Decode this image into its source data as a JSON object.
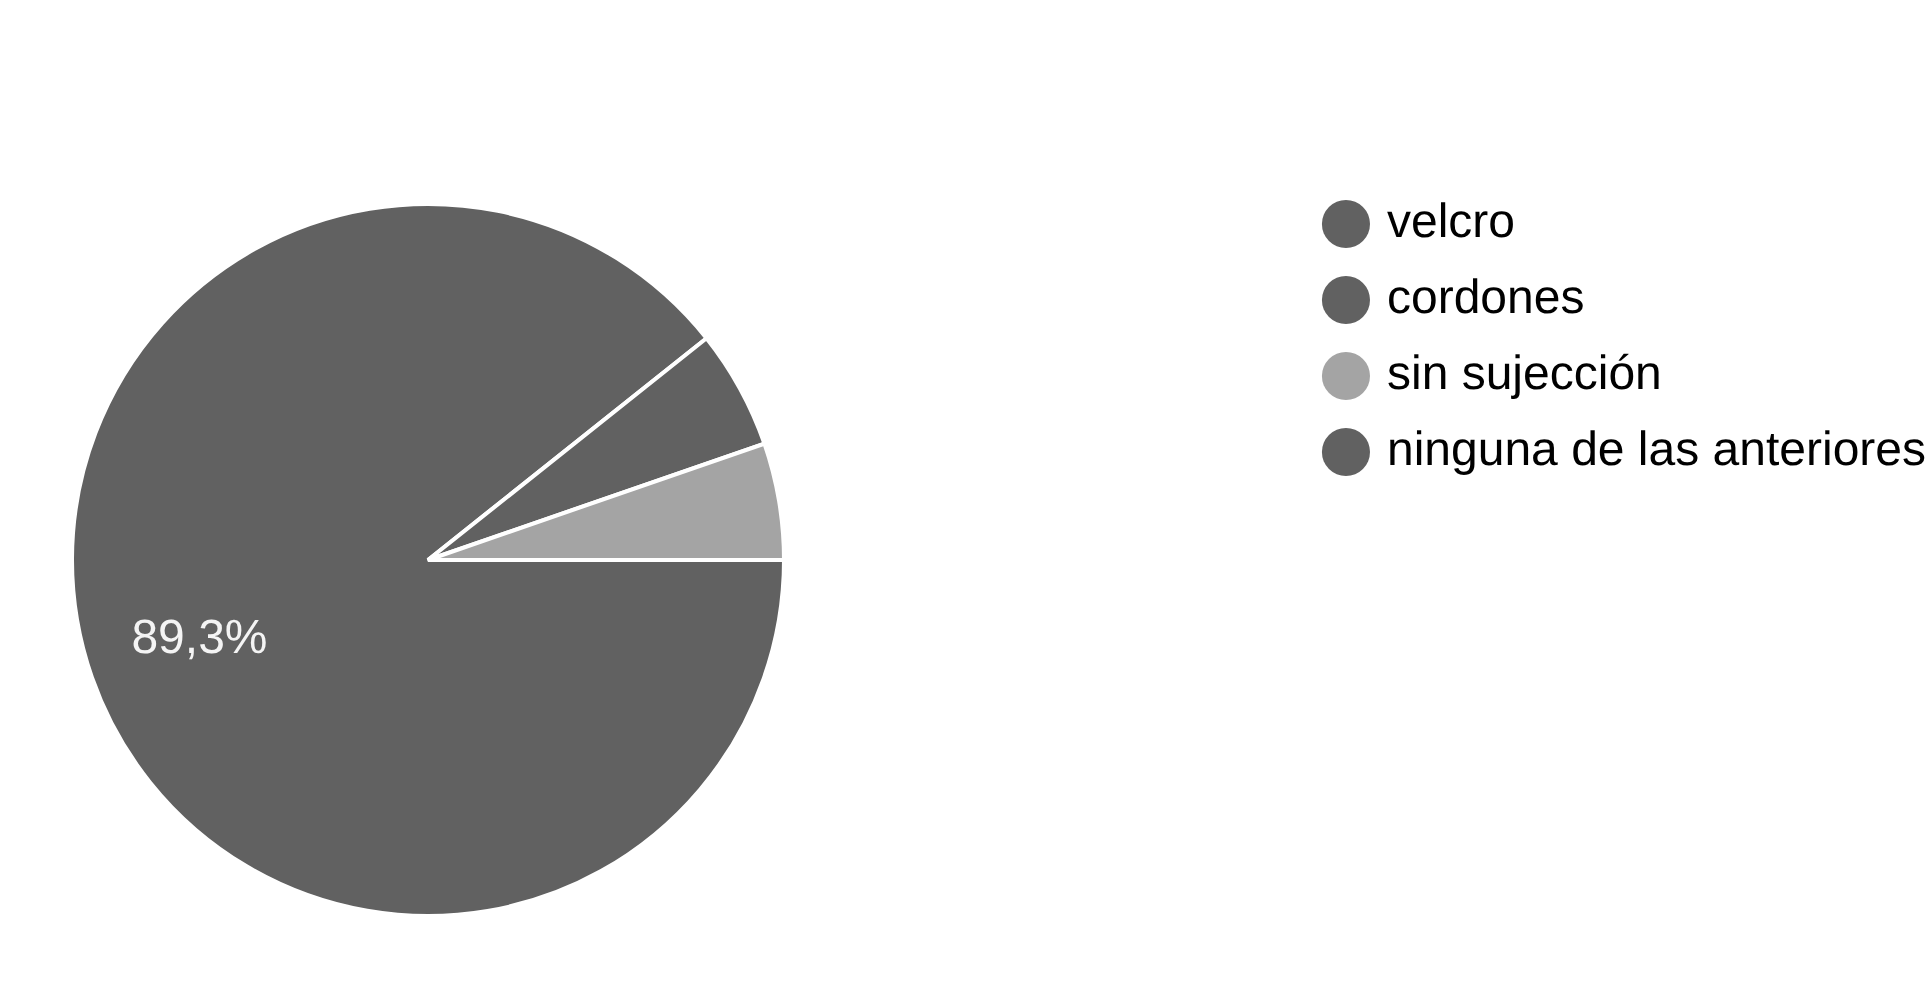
{
  "chart_data": {
    "type": "pie",
    "categories": [
      "velcro",
      "cordones",
      "sin sujección",
      "ninguna de las anteriores"
    ],
    "values": [
      89.3,
      5.4,
      5.3,
      0
    ],
    "colors": [
      "#616161",
      "#616161",
      "#a4a4a4",
      "#616161"
    ],
    "value_labels": [
      "89,3%",
      null,
      null,
      null
    ],
    "legend": "right"
  }
}
